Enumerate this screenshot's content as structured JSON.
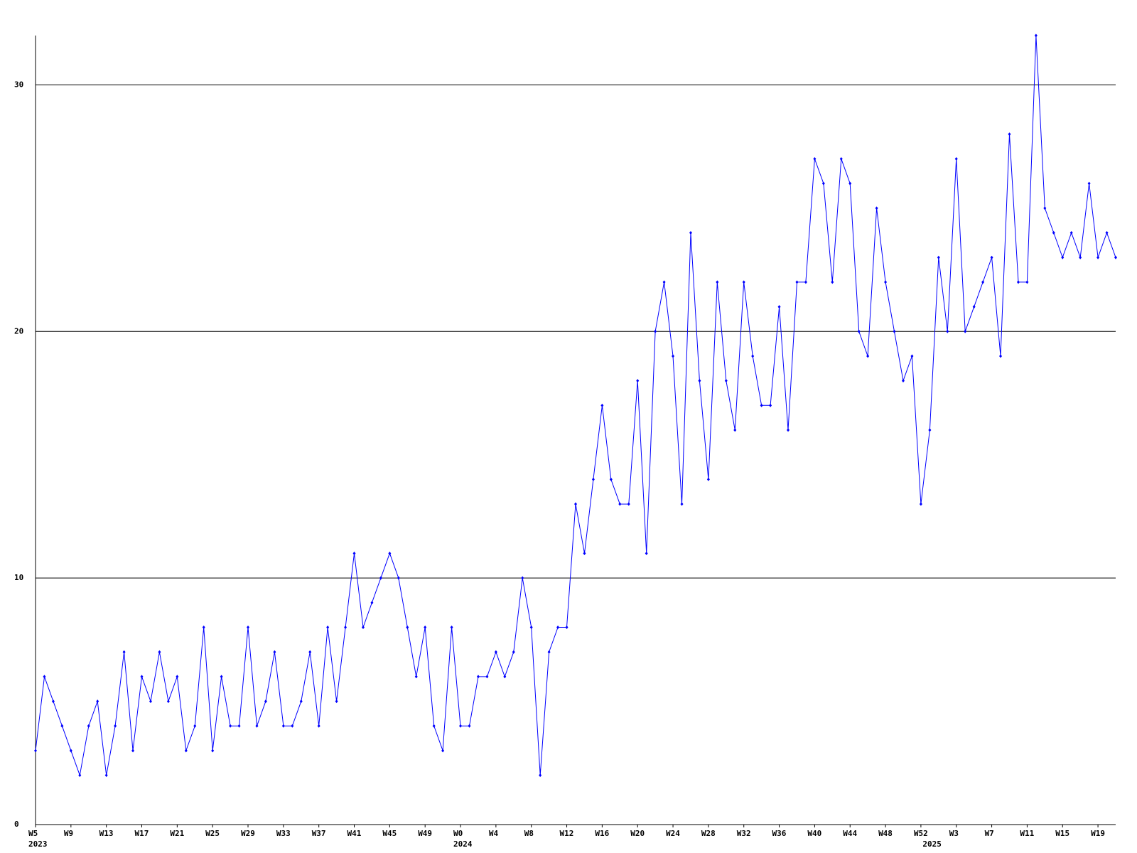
{
  "chart_data": {
    "type": "line",
    "categories": [
      "W5",
      null,
      null,
      null,
      "W9",
      null,
      null,
      null,
      "W13",
      null,
      null,
      null,
      "W17",
      null,
      null,
      null,
      "W21",
      null,
      null,
      null,
      "W25",
      null,
      null,
      null,
      "W29",
      null,
      null,
      null,
      "W33",
      null,
      null,
      null,
      "W37",
      null,
      null,
      null,
      "W41",
      null,
      null,
      null,
      "W45",
      null,
      null,
      null,
      "W49",
      null,
      null,
      null,
      "W0",
      null,
      null,
      null,
      "W4",
      null,
      null,
      null,
      "W8",
      null,
      null,
      null,
      "W12",
      null,
      null,
      null,
      "W16",
      null,
      null,
      null,
      "W20",
      null,
      null,
      null,
      "W24",
      null,
      null,
      null,
      "W28",
      null,
      null,
      null,
      "W32",
      null,
      null,
      null,
      "W36",
      null,
      null,
      null,
      "W40",
      null,
      null,
      null,
      "W44",
      null,
      null,
      null,
      "W48",
      null,
      null,
      null,
      "W52",
      null,
      null,
      null,
      "W3",
      null,
      null,
      null,
      "W7",
      null,
      null,
      null,
      "W11",
      null,
      null,
      null,
      "W15",
      null,
      null,
      null,
      "W19",
      null,
      null
    ],
    "year_labels": [
      {
        "index": 0,
        "label": "2023"
      },
      {
        "index": 48,
        "label": "2024"
      },
      {
        "index": 101,
        "label": "2025"
      }
    ],
    "series": [
      {
        "color": "#0000ff",
        "values": [
          3,
          6,
          5,
          4,
          3,
          2,
          4,
          5,
          2,
          4,
          7,
          3,
          6,
          5,
          7,
          5,
          6,
          3,
          4,
          8,
          3,
          6,
          4,
          4,
          8,
          4,
          5,
          7,
          4,
          4,
          5,
          7,
          4,
          8,
          5,
          8,
          11,
          8,
          9,
          10,
          11,
          10,
          8,
          6,
          8,
          4,
          3,
          8,
          4,
          4,
          6,
          6,
          7,
          6,
          7,
          10,
          8,
          2,
          7,
          8,
          8,
          13,
          11,
          14,
          17,
          14,
          13,
          13,
          18,
          11,
          20,
          22,
          19,
          13,
          24,
          18,
          14,
          22,
          18,
          16,
          22,
          19,
          17,
          17,
          21,
          16,
          22,
          22,
          27,
          26,
          22,
          27,
          26,
          20,
          19,
          25,
          22,
          20,
          18,
          19,
          13,
          16,
          23,
          20,
          27,
          20,
          21,
          22,
          23,
          19,
          28,
          22,
          22,
          32,
          25,
          24,
          23,
          24,
          23,
          26,
          23,
          24,
          23
        ]
      }
    ],
    "ylim": [
      0,
      32
    ],
    "yticks": [
      0,
      10,
      20,
      30
    ],
    "grid": true
  }
}
